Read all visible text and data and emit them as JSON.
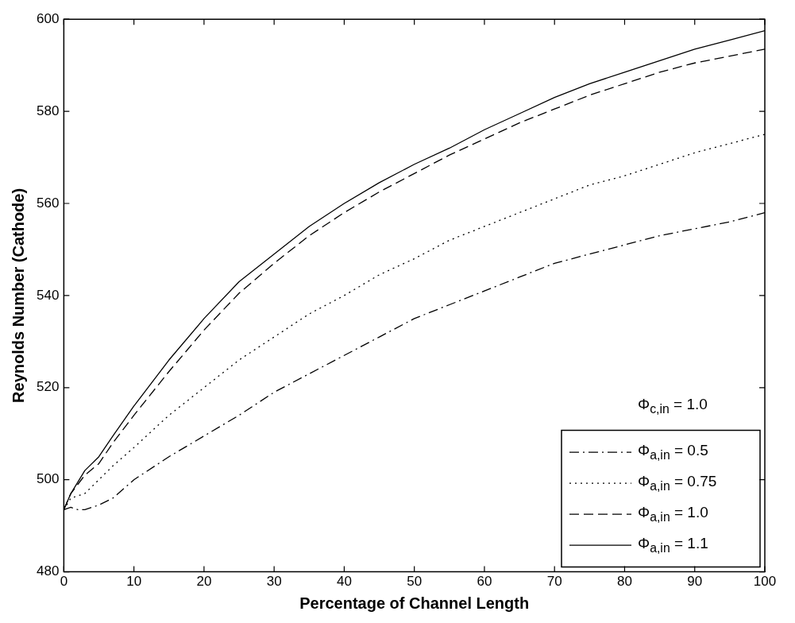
{
  "chart_data": {
    "type": "line",
    "xlabel": "Percentage of Channel Length",
    "ylabel": "Reynolds Number (Cathode)",
    "x": [
      0,
      1,
      2,
      3,
      5,
      7,
      10,
      15,
      20,
      25,
      30,
      35,
      40,
      45,
      50,
      55,
      60,
      65,
      70,
      75,
      80,
      85,
      90,
      95,
      100
    ],
    "xlim": [
      0,
      100
    ],
    "xticks": [
      0,
      10,
      20,
      30,
      40,
      50,
      60,
      70,
      80,
      90,
      100
    ],
    "ylim": [
      480,
      600
    ],
    "yticks": [
      480,
      500,
      520,
      540,
      560,
      580,
      600
    ],
    "grid": false,
    "legend": "bottom right",
    "marker": "none",
    "annotations": [
      "Φ$_{c,in}$ = 1.0"
    ],
    "series": [
      {
        "name": "Φ$_{a,in}$ = 0.5",
        "color": "#000000",
        "line_style": "dashdot",
        "values": [
          493.5,
          494,
          493.5,
          493.5,
          494.5,
          496,
          500,
          505,
          509.5,
          514,
          519,
          523,
          527,
          531,
          535,
          538,
          541,
          544,
          547,
          549,
          551,
          553,
          554.5,
          556,
          558
        ]
      },
      {
        "name": "Φ$_{a,in}$ = 0.75",
        "color": "#000000",
        "line_style": "dotted",
        "values": [
          493.5,
          496,
          496.5,
          497,
          500,
          503,
          507,
          514,
          520,
          526,
          531,
          536,
          540,
          544.5,
          548,
          552,
          555,
          558,
          561,
          564,
          566,
          568.5,
          571,
          573,
          575
        ]
      },
      {
        "name": "Φ$_{a,in}$ = 1.0",
        "color": "#000000",
        "line_style": "dashed",
        "values": [
          493.5,
          497,
          499,
          501,
          503.5,
          508,
          514,
          523.5,
          532.5,
          540.5,
          547,
          553,
          558,
          562.5,
          566.5,
          570.5,
          574,
          577.5,
          580.5,
          583.5,
          586,
          588.5,
          590.5,
          592,
          593.5
        ]
      },
      {
        "name": "Φ$_{a,in}$ = 1.1",
        "color": "#000000",
        "line_style": "solid",
        "values": [
          493.5,
          497,
          499.5,
          502,
          505,
          509.5,
          516,
          526,
          535,
          543,
          549,
          555,
          560,
          564.5,
          568.5,
          572,
          576,
          579.5,
          583,
          586,
          588.5,
          591,
          593.5,
          595.5,
          597.5
        ]
      }
    ]
  }
}
